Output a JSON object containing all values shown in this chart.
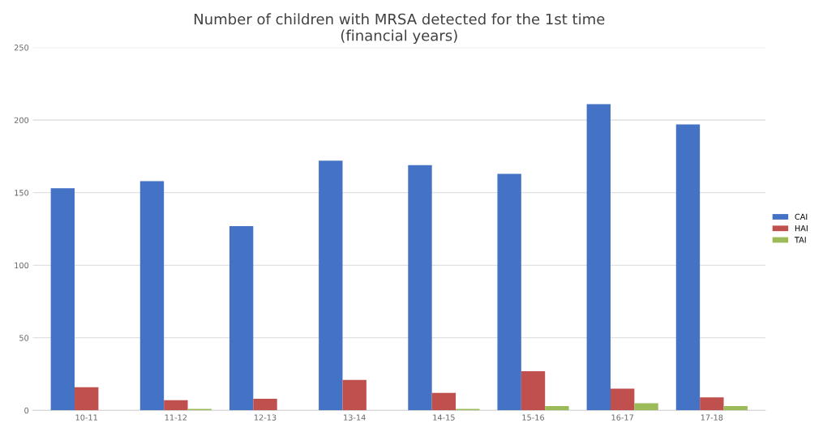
{
  "chart_data": {
    "type": "bar",
    "title": "Number of children with MRSA detected for the 1st time\n(financial years)",
    "categories": [
      "10-11",
      "11-12",
      "12-13",
      "13-14",
      "14-15",
      "15-16",
      "16-17",
      "17-18"
    ],
    "series": [
      {
        "name": "CAI",
        "color": "#4472c4",
        "values": [
          153,
          158,
          127,
          172,
          169,
          163,
          211,
          197
        ]
      },
      {
        "name": "HAI",
        "color": "#c0504d",
        "values": [
          16,
          7,
          8,
          21,
          12,
          27,
          15,
          9
        ]
      },
      {
        "name": "TAI",
        "color": "#9bbb59",
        "values": [
          0,
          1,
          0,
          0,
          1,
          3,
          5,
          3
        ]
      }
    ],
    "ylim": [
      0,
      250
    ],
    "yticks": [
      0,
      50,
      100,
      150,
      200,
      250
    ],
    "grid": "y",
    "legend": "right"
  }
}
